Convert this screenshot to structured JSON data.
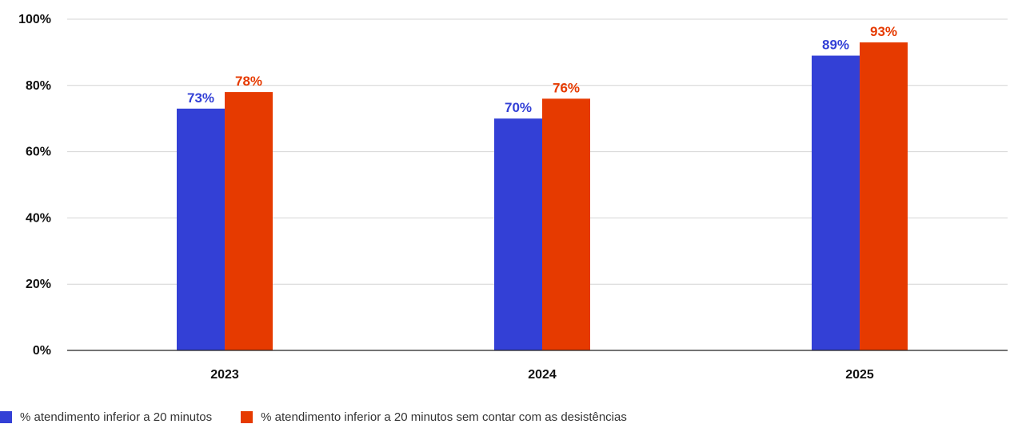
{
  "chart_data": {
    "type": "bar",
    "title": "",
    "xlabel": "",
    "ylabel": "",
    "categories": [
      "2023",
      "2024",
      "2025"
    ],
    "series": [
      {
        "name": "% atendimento inferior a 20 minutos",
        "values": [
          73,
          70,
          89
        ],
        "color": "#3340D6"
      },
      {
        "name": "% atendimento inferior a 20 minutos sem contar com as desistências",
        "values": [
          78,
          76,
          93
        ],
        "color": "#E63A00"
      }
    ],
    "ylim": [
      0,
      100
    ],
    "yticks": [
      "0%",
      "20%",
      "40%",
      "60%",
      "80%",
      "100%"
    ],
    "data_labels": [
      [
        "73%",
        "70%",
        "89%"
      ],
      [
        "78%",
        "76%",
        "93%"
      ]
    ],
    "grid": true,
    "legend_position": "bottom-left"
  }
}
